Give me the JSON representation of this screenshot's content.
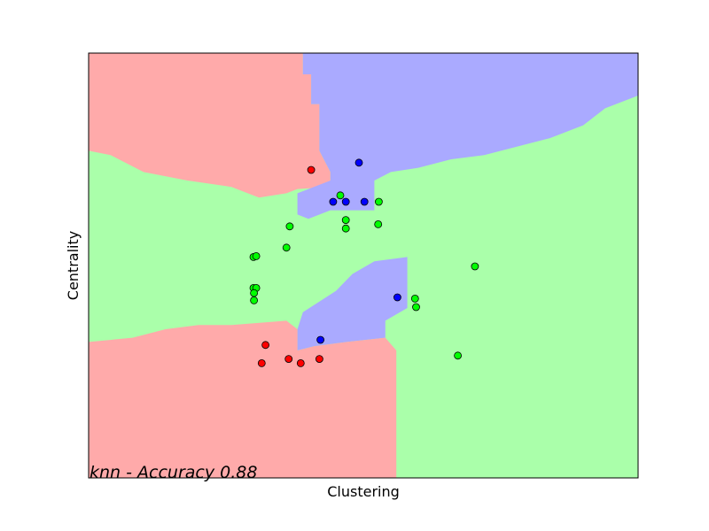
{
  "chart_data": {
    "type": "scatter",
    "title": "",
    "xlabel": "Clustering",
    "ylabel": "Centrality",
    "annotation": "knn - Accuracy 0.88",
    "xlim": [
      0,
      1
    ],
    "ylim": [
      0,
      1
    ],
    "grid": false,
    "legend": "none",
    "region_colors": {
      "red": "#ffaaaa",
      "blue": "#aaaaff",
      "green": "#aaffaa"
    },
    "point_colors": {
      "red": "#ff0000",
      "blue": "#0000ff",
      "green": "#00ff00"
    },
    "regions": [
      {
        "class": "red",
        "polygon": [
          [
            0,
            1
          ],
          [
            0.39,
            1
          ],
          [
            0.39,
            0.95
          ],
          [
            0.405,
            0.95
          ],
          [
            0.405,
            0.88
          ],
          [
            0.42,
            0.88
          ],
          [
            0.42,
            0.77
          ],
          [
            0.44,
            0.72
          ],
          [
            0.44,
            0.685
          ],
          [
            0.38,
            0.68
          ],
          [
            0.36,
            0.67
          ],
          [
            0.31,
            0.66
          ],
          [
            0.26,
            0.685
          ],
          [
            0.18,
            0.7
          ],
          [
            0.1,
            0.72
          ],
          [
            0.04,
            0.76
          ],
          [
            0,
            0.77
          ]
        ]
      },
      {
        "class": "blue",
        "polygon": [
          [
            0.39,
            1
          ],
          [
            1,
            1
          ],
          [
            1,
            0.9
          ],
          [
            0.94,
            0.87
          ],
          [
            0.9,
            0.83
          ],
          [
            0.84,
            0.8
          ],
          [
            0.78,
            0.78
          ],
          [
            0.72,
            0.76
          ],
          [
            0.66,
            0.75
          ],
          [
            0.6,
            0.73
          ],
          [
            0.55,
            0.72
          ],
          [
            0.52,
            0.7
          ],
          [
            0.52,
            0.63
          ],
          [
            0.44,
            0.63
          ],
          [
            0.4,
            0.61
          ],
          [
            0.38,
            0.62
          ],
          [
            0.38,
            0.67
          ],
          [
            0.4,
            0.68
          ],
          [
            0.44,
            0.7
          ],
          [
            0.44,
            0.72
          ],
          [
            0.42,
            0.77
          ],
          [
            0.42,
            0.88
          ],
          [
            0.405,
            0.88
          ],
          [
            0.405,
            0.95
          ],
          [
            0.39,
            0.95
          ]
        ]
      },
      {
        "class": "blue",
        "polygon": [
          [
            0.52,
            0.51
          ],
          [
            0.58,
            0.52
          ],
          [
            0.58,
            0.4
          ],
          [
            0.54,
            0.37
          ],
          [
            0.54,
            0.33
          ],
          [
            0.47,
            0.32
          ],
          [
            0.41,
            0.31
          ],
          [
            0.38,
            0.3
          ],
          [
            0.38,
            0.35
          ],
          [
            0.39,
            0.39
          ],
          [
            0.45,
            0.44
          ],
          [
            0.48,
            0.48
          ]
        ]
      },
      {
        "class": "red",
        "polygon": [
          [
            0,
            0
          ],
          [
            0.56,
            0
          ],
          [
            0.56,
            0.3
          ],
          [
            0.54,
            0.33
          ],
          [
            0.47,
            0.32
          ],
          [
            0.41,
            0.31
          ],
          [
            0.38,
            0.3
          ],
          [
            0.38,
            0.35
          ],
          [
            0.36,
            0.37
          ],
          [
            0.26,
            0.36
          ],
          [
            0.2,
            0.36
          ],
          [
            0.14,
            0.35
          ],
          [
            0.08,
            0.33
          ],
          [
            0,
            0.32
          ]
        ]
      }
    ],
    "series": [
      {
        "class": "red",
        "points": [
          [
            0.405,
            0.725
          ],
          [
            0.322,
            0.313
          ],
          [
            0.315,
            0.27
          ],
          [
            0.364,
            0.28
          ],
          [
            0.386,
            0.27
          ],
          [
            0.42,
            0.28
          ]
        ]
      },
      {
        "class": "blue",
        "points": [
          [
            0.492,
            0.742
          ],
          [
            0.445,
            0.65
          ],
          [
            0.468,
            0.65
          ],
          [
            0.502,
            0.65
          ],
          [
            0.562,
            0.425
          ],
          [
            0.422,
            0.325
          ]
        ]
      },
      {
        "class": "green",
        "points": [
          [
            0.458,
            0.665
          ],
          [
            0.528,
            0.65
          ],
          [
            0.468,
            0.607
          ],
          [
            0.468,
            0.587
          ],
          [
            0.527,
            0.597
          ],
          [
            0.366,
            0.592
          ],
          [
            0.36,
            0.542
          ],
          [
            0.3,
            0.52
          ],
          [
            0.305,
            0.522
          ],
          [
            0.3,
            0.447
          ],
          [
            0.305,
            0.447
          ],
          [
            0.301,
            0.435
          ],
          [
            0.301,
            0.418
          ],
          [
            0.703,
            0.498
          ],
          [
            0.594,
            0.422
          ],
          [
            0.596,
            0.402
          ],
          [
            0.672,
            0.288
          ]
        ]
      }
    ]
  }
}
